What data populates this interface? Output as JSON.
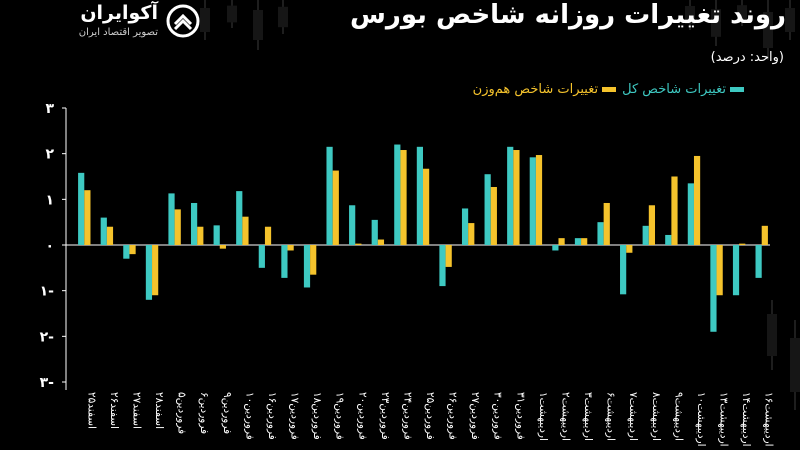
{
  "brand": {
    "name": "آکوایران",
    "tagline": "تصویر اقتصاد ایران"
  },
  "header": {
    "title": "روند تغییرات روزانه شاخص بورس",
    "unit": "(واحد: درصد)"
  },
  "colors": {
    "background": "#000000",
    "series_total": "#3ec9c2",
    "series_equal": "#f5c32c",
    "axis": "#ffffff"
  },
  "chart_data": {
    "type": "bar",
    "title": "روند تغییرات روزانه شاخص بورس",
    "ylabel": "",
    "xlabel": "",
    "ylim": [
      -3,
      3
    ],
    "yticks": [
      -3,
      -2,
      -1,
      0,
      1,
      2,
      3
    ],
    "ytick_labels": [
      "۳-",
      "۲-",
      "۱-",
      "۰",
      "۱",
      "۲",
      "۳"
    ],
    "grid": false,
    "legend": "top-right",
    "categories": [
      "اسفند۲۵",
      "اسفند۲۶",
      "اسفند۲۷",
      "اسفند۲۸",
      "فروردین۵",
      "فروردین۶",
      "فروردین۹",
      "فروردین۱۰",
      "فروردین۱۶",
      "فروردین۱۷",
      "فروردین۱۸",
      "فروردین۱۹",
      "فروردین۲۰",
      "فروردین۲۳",
      "فروردین۲۴",
      "فروردین۲۵",
      "فروردین۲۶",
      "فروردین۲۷",
      "فروردین۳۰",
      "فروردین۳۱",
      "اردیبهشت۱",
      "اردیبهشت۲",
      "اردیبهشت۳",
      "اردیبهشت۶",
      "اردیبهشت۷",
      "اردیبهشت۸",
      "اردیبهشت۹",
      "اردیبهشت۱۰",
      "اردیبهشت۱۳",
      "اردیبهشت۱۴",
      "اردیبهشت۱۶"
    ],
    "series": [
      {
        "name": "تغییرات شاخص کل",
        "values": [
          1.58,
          0.6,
          -0.3,
          -1.2,
          1.13,
          0.92,
          0.43,
          1.18,
          -0.5,
          -0.72,
          -0.93,
          2.15,
          0.87,
          0.55,
          2.2,
          2.15,
          -0.9,
          0.8,
          1.55,
          2.15,
          1.92,
          -0.12,
          0.15,
          0.5,
          -1.08,
          0.42,
          0.22,
          1.35,
          -1.9,
          -1.1,
          -0.72
        ]
      },
      {
        "name": "تغییرات شاخص هم‌وزن",
        "values": [
          1.2,
          0.4,
          -0.2,
          -1.1,
          0.78,
          0.4,
          -0.08,
          0.62,
          0.4,
          -0.12,
          -0.65,
          1.63,
          0.03,
          0.12,
          2.08,
          1.67,
          -0.48,
          0.48,
          1.27,
          2.08,
          1.97,
          0.15,
          0.15,
          0.92,
          -0.17,
          0.87,
          1.5,
          1.95,
          -1.1,
          0.03,
          0.42
        ]
      }
    ]
  }
}
